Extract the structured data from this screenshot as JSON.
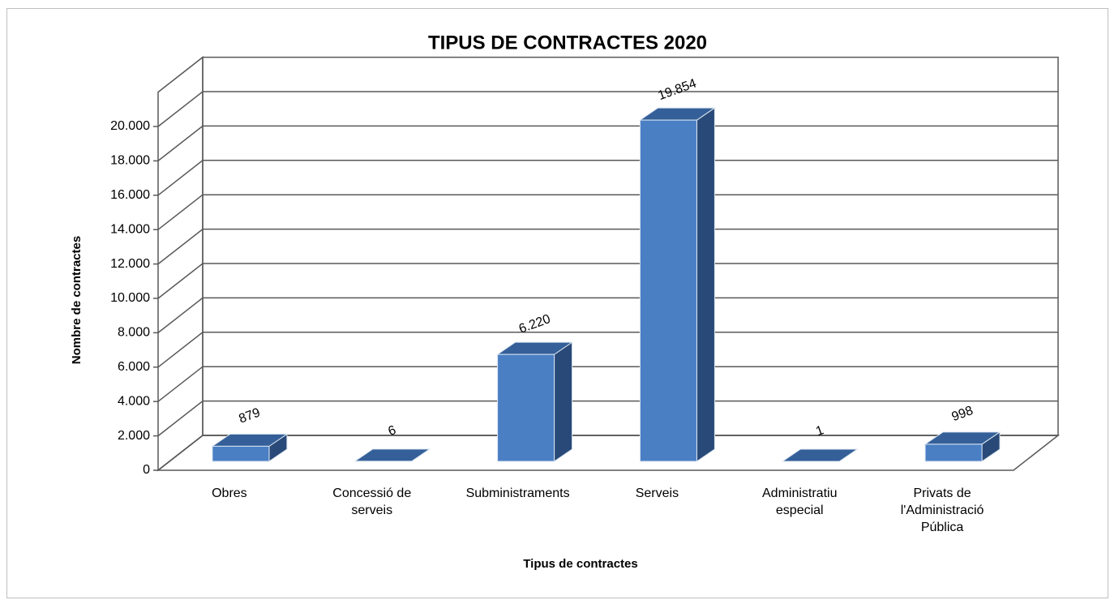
{
  "chart_data": {
    "type": "bar3d",
    "title": "TIPUS DE CONTRACTES 2020",
    "x_label": "Tipus de contractes",
    "y_label": "Nombre de contractes",
    "categories": [
      "Obres",
      "Concessió de serveis",
      "Subministraments",
      "Serveis",
      "Administratiu especial",
      "Privats de l'Administració Pública"
    ],
    "values": [
      879,
      6,
      6220,
      19854,
      1,
      998
    ],
    "value_labels": [
      "879",
      "6",
      "6.220",
      "19.854",
      "1",
      "998"
    ],
    "color": "#4a7fc4",
    "ylim": [
      0,
      22000
    ],
    "yticks": [
      0,
      {
        "value": 2000,
        "label": "2.000"
      },
      {
        "value": 4000,
        "label": "4.000"
      },
      {
        "value": 6000,
        "label": "6.000"
      },
      {
        "value": 8000,
        "label": "8.000"
      },
      {
        "value": 10000,
        "label": "10.000"
      },
      {
        "value": 12000,
        "label": "12.000"
      },
      {
        "value": 14000,
        "label": "14.000"
      },
      {
        "value": 16000,
        "label": "16.000"
      },
      {
        "value": 18000,
        "label": "18.000"
      },
      {
        "value": 20000,
        "label": "20.000"
      }
    ],
    "grid": true
  }
}
